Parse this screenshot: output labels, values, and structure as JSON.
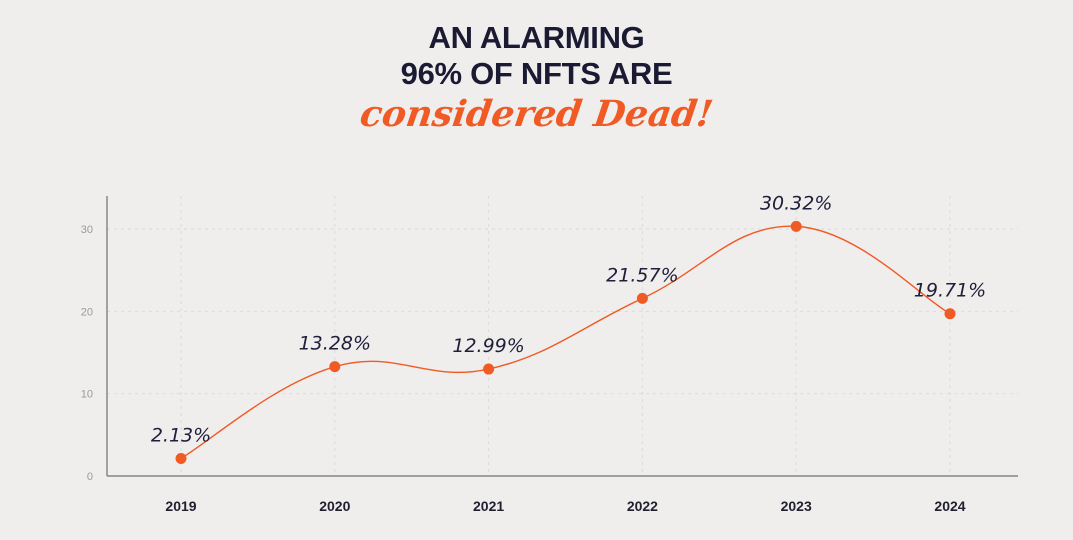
{
  "header": {
    "line1": "AN ALARMING",
    "line2": "96% OF NFTS ARE",
    "accent": "considered Dead!"
  },
  "colors": {
    "accent": "#f05a24",
    "text": "#1a1a33",
    "background": "#f0eeec",
    "grid": "#dddbd8"
  },
  "chart_data": {
    "type": "line",
    "smooth": true,
    "categories": [
      "2019",
      "2020",
      "2021",
      "2022",
      "2023",
      "2024"
    ],
    "values": [
      2.13,
      13.28,
      12.99,
      21.57,
      30.32,
      19.71
    ],
    "data_labels": [
      "2.13%",
      "13.28%",
      "12.99%",
      "21.57%",
      "30.32%",
      "19.71%"
    ],
    "yticks": [
      "0",
      "10",
      "20",
      "30"
    ],
    "ylim": [
      0,
      33
    ],
    "grid": true,
    "legend": "none",
    "title": "",
    "xlabel": "",
    "ylabel": ""
  }
}
